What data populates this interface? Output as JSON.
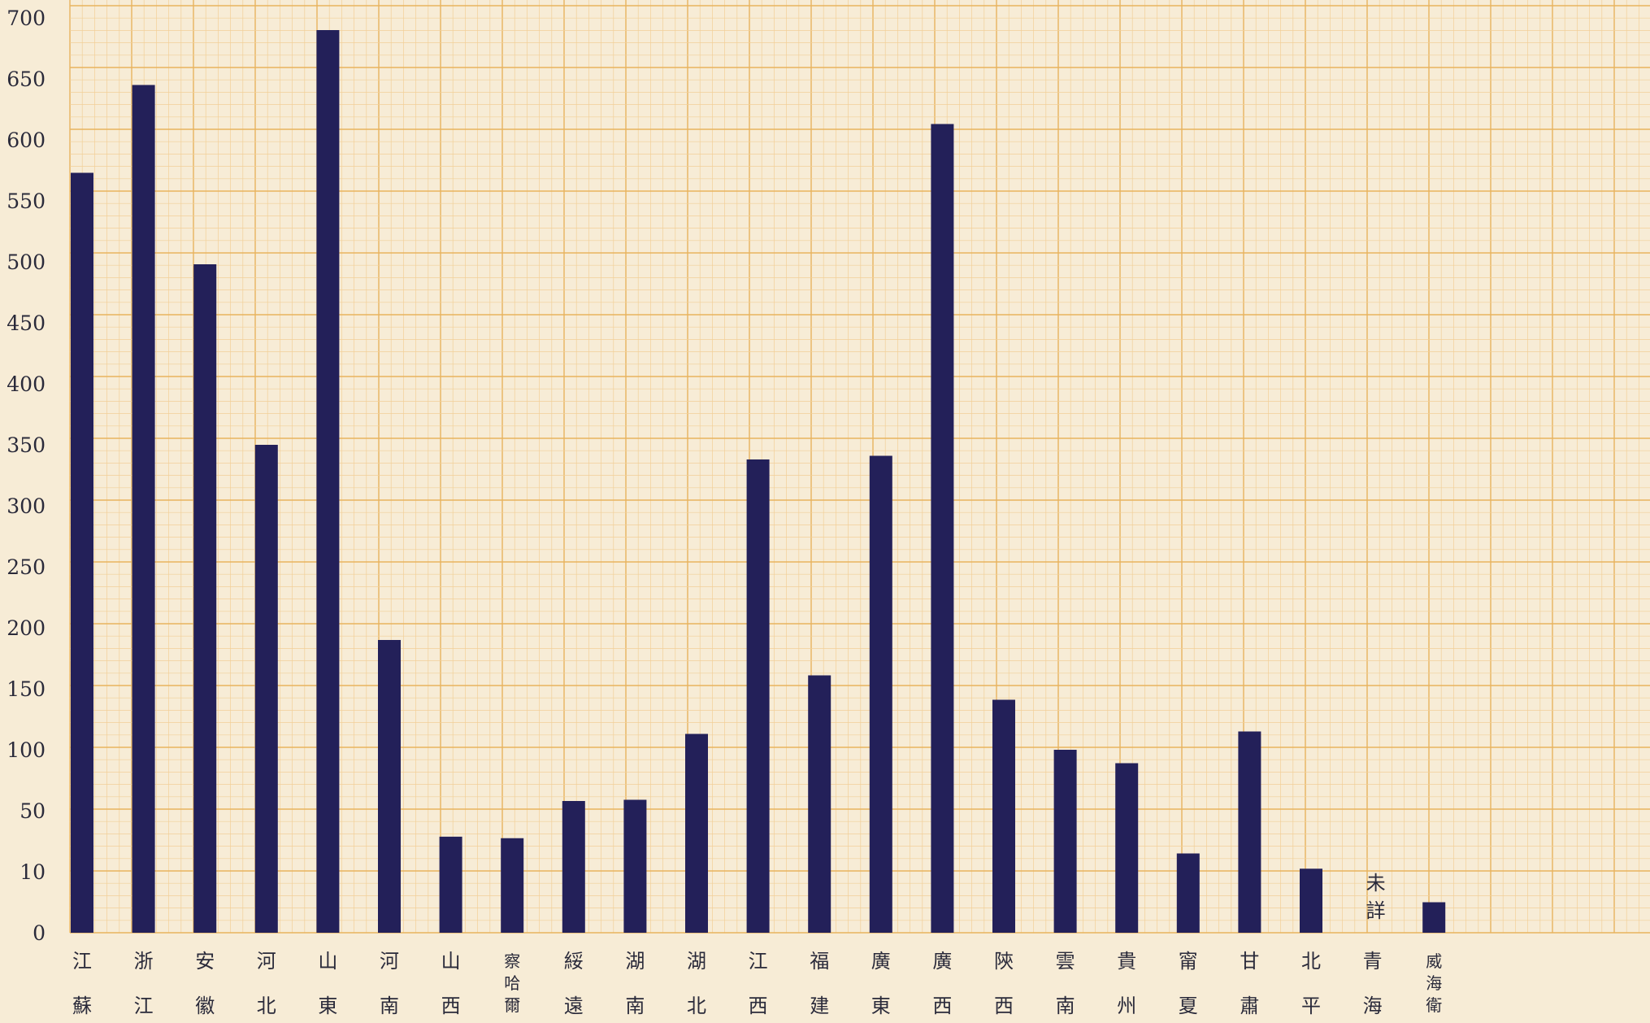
{
  "colors": {
    "background": "#f7ecd6",
    "grid_minor": "#f2cf98",
    "grid_major": "#e8b35f",
    "bar": "#232059",
    "text": "#2a2a3a"
  },
  "chart_data": {
    "type": "bar",
    "title": "",
    "xlabel": "",
    "ylabel": "",
    "y_ticks": [
      "0",
      "10",
      "50",
      "100",
      "150",
      "200",
      "250",
      "300",
      "350",
      "400",
      "450",
      "500",
      "550",
      "600",
      "650",
      "700"
    ],
    "grid": true,
    "categories": [
      [
        "江",
        "蘇"
      ],
      [
        "浙",
        "江"
      ],
      [
        "安",
        "徽"
      ],
      [
        "河",
        "北"
      ],
      [
        "山",
        "東"
      ],
      [
        "河",
        "南"
      ],
      [
        "山",
        "西"
      ],
      [
        "察",
        "哈",
        "爾"
      ],
      [
        "綏",
        "遠"
      ],
      [
        "湖",
        "南"
      ],
      [
        "湖",
        "北"
      ],
      [
        "江",
        "西"
      ],
      [
        "福",
        "建"
      ],
      [
        "廣",
        "東"
      ],
      [
        "廣",
        "西"
      ],
      [
        "陝",
        "西"
      ],
      [
        "雲",
        "南"
      ],
      [
        "貴",
        "州"
      ],
      [
        "甯",
        "夏"
      ],
      [
        "甘",
        "肅"
      ],
      [
        "北",
        "平"
      ],
      [
        "青",
        "海"
      ],
      [
        "威",
        "海",
        "衛"
      ]
    ],
    "values": [
      573,
      645,
      498,
      350,
      690,
      190,
      33,
      32,
      58,
      59,
      113,
      338,
      161,
      341,
      613,
      141,
      100,
      89,
      22,
      115,
      12,
      null,
      5
    ],
    "annotations": [
      {
        "category_index": 21,
        "text": "未詳"
      }
    ]
  }
}
